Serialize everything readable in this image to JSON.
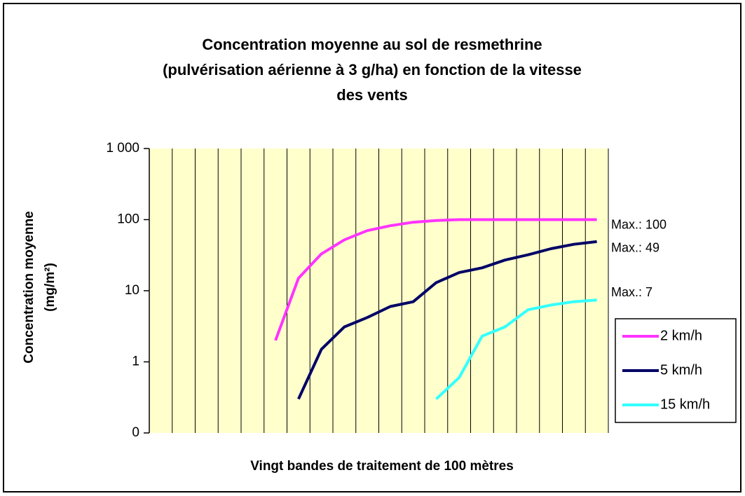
{
  "chart_data": {
    "type": "line",
    "title": [
      "Concentration moyenne au sol de resmethrine",
      "(pulvérisation aérienne à 3 g/ha) en fonction de la vitesse",
      "des vents"
    ],
    "y_label": [
      "Concentration moyenne",
      "(mg/m²)"
    ],
    "x_label": "Vingt bandes de traitement de 100 mètres",
    "categories": [
      null,
      null,
      null,
      null,
      null,
      null,
      null,
      null,
      null,
      null,
      null,
      null,
      null,
      null,
      null,
      null,
      null,
      null,
      null,
      null
    ],
    "log_scale": true,
    "ylim": [
      0.1,
      1000
    ],
    "yticks": [
      {
        "value": 0.1,
        "label": "0"
      },
      1,
      10,
      100,
      {
        "value": 1000,
        "label": "1 000"
      }
    ],
    "background": "#ffffcc",
    "legend": "right",
    "series": [
      {
        "name": "2 km/h",
        "color": "#ff33ff",
        "values": [
          null,
          null,
          null,
          null,
          null,
          2,
          15,
          33,
          52,
          70,
          82,
          92,
          97,
          100,
          100,
          100,
          100,
          100,
          100,
          100
        ]
      },
      {
        "name": "5 km/h",
        "color": "#000066",
        "values": [
          null,
          null,
          null,
          null,
          null,
          null,
          0.3,
          1.5,
          3.1,
          4.2,
          6,
          7,
          13,
          18,
          21,
          27,
          32,
          39,
          45,
          49
        ]
      },
      {
        "name": "15 km/h",
        "color": "#33ffff",
        "values": [
          null,
          null,
          null,
          null,
          null,
          null,
          null,
          null,
          null,
          null,
          null,
          null,
          0.3,
          0.6,
          2.3,
          3.1,
          5.4,
          6.3,
          7,
          7.4
        ]
      }
    ],
    "annotations": [
      "Max.: 100",
      "Max.: 49",
      "Max.: 7"
    ]
  }
}
